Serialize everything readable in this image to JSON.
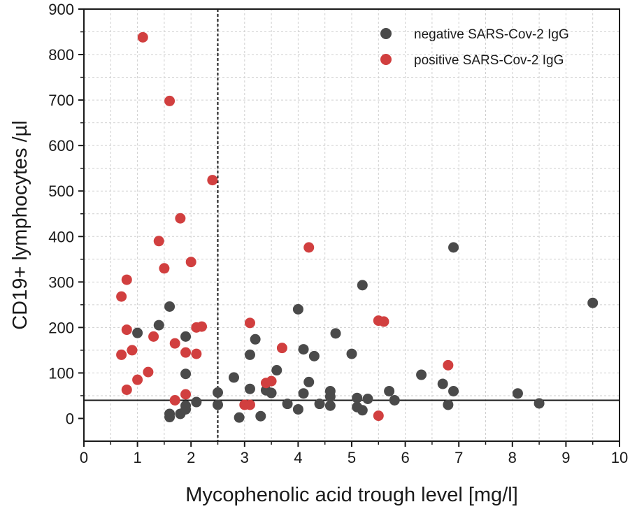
{
  "chart_data": {
    "type": "scatter",
    "xlabel": "Mycophenolic acid trough level [mg/l]",
    "ylabel": "CD19+ lymphocytes /µl",
    "xlim": [
      0,
      10
    ],
    "ylim": [
      -50,
      900
    ],
    "xticks": [
      0,
      1,
      2,
      3,
      4,
      5,
      6,
      7,
      8,
      9,
      10
    ],
    "yticks": [
      0,
      100,
      200,
      300,
      400,
      500,
      600,
      700,
      800,
      900
    ],
    "grid": true,
    "legend_position": "top-right",
    "reference_lines": [
      {
        "orientation": "vertical",
        "value": 2.5,
        "style": "dashed"
      },
      {
        "orientation": "horizontal",
        "value": 40,
        "style": "solid"
      }
    ],
    "series": [
      {
        "name": "negative SARS-Cov-2 IgG",
        "color": "#4a4a4a",
        "points": [
          [
            1.0,
            188
          ],
          [
            1.4,
            205
          ],
          [
            1.6,
            246
          ],
          [
            1.6,
            3
          ],
          [
            1.6,
            10
          ],
          [
            1.8,
            10
          ],
          [
            1.9,
            98
          ],
          [
            1.9,
            180
          ],
          [
            1.9,
            20
          ],
          [
            1.9,
            28
          ],
          [
            2.1,
            36
          ],
          [
            2.5,
            57
          ],
          [
            2.5,
            30
          ],
          [
            2.8,
            90
          ],
          [
            2.9,
            2
          ],
          [
            3.1,
            65
          ],
          [
            3.1,
            140
          ],
          [
            3.2,
            174
          ],
          [
            3.3,
            5
          ],
          [
            3.4,
            62
          ],
          [
            3.5,
            56
          ],
          [
            3.6,
            106
          ],
          [
            3.8,
            32
          ],
          [
            4.0,
            240
          ],
          [
            4.0,
            20
          ],
          [
            4.1,
            55
          ],
          [
            4.1,
            152
          ],
          [
            4.2,
            80
          ],
          [
            4.3,
            137
          ],
          [
            4.4,
            32
          ],
          [
            4.6,
            48
          ],
          [
            4.6,
            60
          ],
          [
            4.6,
            28
          ],
          [
            4.7,
            187
          ],
          [
            5.0,
            142
          ],
          [
            5.1,
            45
          ],
          [
            5.1,
            25
          ],
          [
            5.2,
            293
          ],
          [
            5.2,
            18
          ],
          [
            5.3,
            43
          ],
          [
            5.7,
            60
          ],
          [
            5.8,
            40
          ],
          [
            6.3,
            96
          ],
          [
            6.7,
            76
          ],
          [
            6.8,
            30
          ],
          [
            6.9,
            376
          ],
          [
            6.9,
            60
          ],
          [
            8.1,
            55
          ],
          [
            8.5,
            33
          ],
          [
            9.5,
            254
          ]
        ]
      },
      {
        "name": "positive SARS-Cov-2 IgG",
        "color": "#d13f3f",
        "points": [
          [
            1.1,
            838
          ],
          [
            1.6,
            698
          ],
          [
            2.4,
            524
          ],
          [
            1.8,
            440
          ],
          [
            1.4,
            390
          ],
          [
            1.5,
            330
          ],
          [
            2.0,
            344
          ],
          [
            0.8,
            305
          ],
          [
            0.7,
            268
          ],
          [
            0.8,
            195
          ],
          [
            0.9,
            150
          ],
          [
            0.7,
            140
          ],
          [
            1.0,
            85
          ],
          [
            0.8,
            63
          ],
          [
            1.2,
            102
          ],
          [
            1.3,
            180
          ],
          [
            1.7,
            165
          ],
          [
            1.9,
            145
          ],
          [
            2.1,
            142
          ],
          [
            2.1,
            200
          ],
          [
            2.2,
            202
          ],
          [
            1.9,
            53
          ],
          [
            1.7,
            40
          ],
          [
            3.0,
            30
          ],
          [
            3.1,
            30
          ],
          [
            3.1,
            210
          ],
          [
            3.4,
            78
          ],
          [
            3.5,
            82
          ],
          [
            3.7,
            155
          ],
          [
            4.2,
            376
          ],
          [
            5.5,
            215
          ],
          [
            5.6,
            213
          ],
          [
            5.5,
            6
          ],
          [
            6.8,
            117
          ]
        ]
      }
    ]
  }
}
